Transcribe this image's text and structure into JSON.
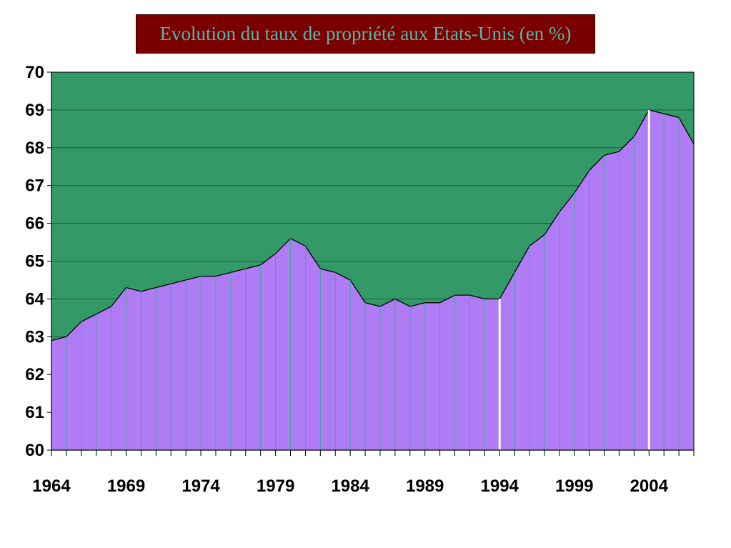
{
  "title": "Evolution du taux de propriété aux Etats-Unis (en %)",
  "colors": {
    "plot_background": "#339966",
    "area_fill": "#b07cf6",
    "area_line": "#000000",
    "drop_lines": "#3fa7a0",
    "highlight_lines": "#ffffff",
    "title_background": "#7a0000",
    "title_text": "#53b7ad"
  },
  "chart_data": {
    "type": "area",
    "title": "Evolution du taux de propriété aux Etats-Unis (en %)",
    "xlabel": "",
    "ylabel": "",
    "ylim": [
      60,
      70
    ],
    "xlim": [
      1964,
      2007
    ],
    "grid": true,
    "legend": "none",
    "y_ticks": [
      "60",
      "61",
      "62",
      "63",
      "64",
      "65",
      "66",
      "67",
      "68",
      "69",
      "70"
    ],
    "x_ticks": [
      "1964",
      "1969",
      "1974",
      "1979",
      "1984",
      "1989",
      "1994",
      "1999",
      "2004"
    ],
    "highlighted_years": [
      1994,
      2004
    ],
    "x": [
      1964,
      1965,
      1966,
      1967,
      1968,
      1969,
      1970,
      1971,
      1972,
      1973,
      1974,
      1975,
      1976,
      1977,
      1978,
      1979,
      1980,
      1981,
      1982,
      1983,
      1984,
      1985,
      1986,
      1987,
      1988,
      1989,
      1990,
      1991,
      1992,
      1993,
      1994,
      1995,
      1996,
      1997,
      1998,
      1999,
      2000,
      2001,
      2002,
      2003,
      2004,
      2005,
      2006,
      2007
    ],
    "values": [
      62.9,
      63.0,
      63.4,
      63.6,
      63.8,
      64.3,
      64.2,
      64.3,
      64.4,
      64.5,
      64.6,
      64.6,
      64.7,
      64.8,
      64.9,
      65.2,
      65.6,
      65.4,
      64.8,
      64.7,
      64.5,
      63.9,
      63.8,
      64.0,
      63.8,
      63.9,
      63.9,
      64.1,
      64.1,
      64.0,
      64.0,
      64.7,
      65.4,
      65.7,
      66.3,
      66.8,
      67.4,
      67.8,
      67.9,
      68.3,
      69.0,
      68.9,
      68.8,
      68.1
    ]
  }
}
